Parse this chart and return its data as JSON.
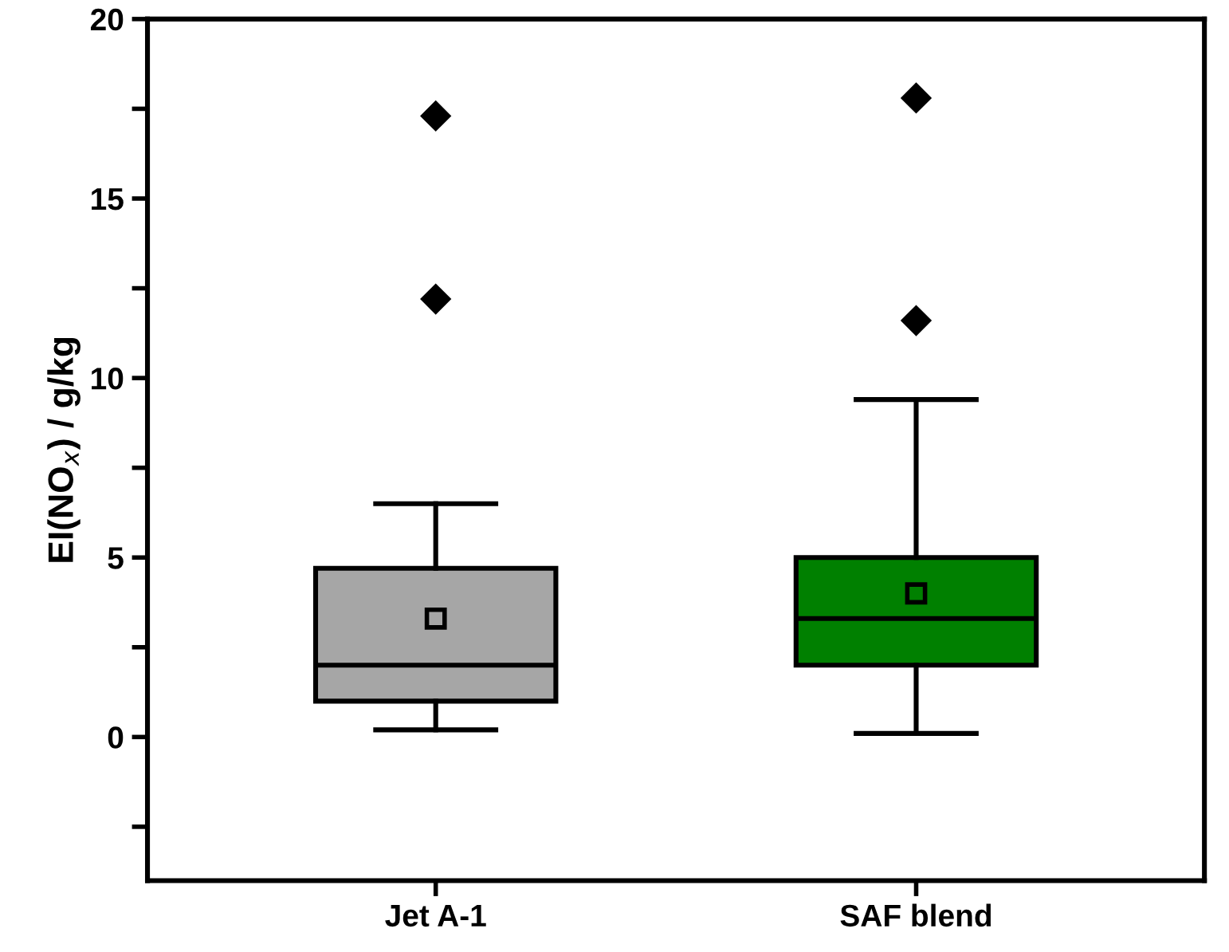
{
  "chart_data": {
    "type": "box",
    "ylabel": "EI(NO$_{x}$) / g/kg",
    "categories": [
      "Jet A-1",
      "SAF blend"
    ],
    "series": [
      {
        "colors": [
          "#a6a6a6",
          "#008000"
        ],
        "boxes": [
          {
            "low": 0.2,
            "q1": 1.0,
            "median": 2.0,
            "q3": 4.7,
            "high": 6.5,
            "mean": 3.3,
            "outliers": [
              12.2,
              17.3
            ]
          },
          {
            "low": 0.1,
            "q1": 2.0,
            "median": 3.3,
            "q3": 5.0,
            "high": 9.4,
            "mean": 4.0,
            "outliers": [
              11.6,
              17.8
            ]
          }
        ]
      }
    ],
    "ylim": [
      -4,
      20
    ],
    "yticks": [
      {
        "value": -2.5,
        "label": null
      },
      0,
      {
        "value": 2.5,
        "label": null
      },
      5,
      {
        "value": 7.5,
        "label": null
      },
      10,
      {
        "value": 12.5,
        "label": null
      },
      15,
      {
        "value": 17.5,
        "label": null
      },
      20
    ],
    "grid": false
  }
}
